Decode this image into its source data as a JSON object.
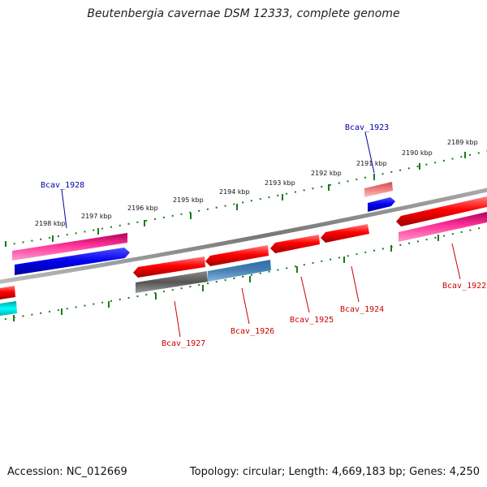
{
  "title": "Beutenbergia cavernae DSM 12333, complete genome",
  "footer": {
    "accession": "Accession: NC_012669",
    "stats": "Topology: circular; Length: 4,669,183 bp; Genes: 4,250"
  },
  "colors": {
    "forward_label": "#0000aa",
    "reverse_label": "#cc0000",
    "scale_ticks": "#1a7a1a",
    "genome_line": "#888888"
  },
  "scale_labels": [
    "2198 kbp",
    "2197 kbp",
    "2196 kbp",
    "2195 kbp",
    "2194 kbp",
    "2193 kbp",
    "2192 kbp",
    "2191 kbp",
    "2190 kbp",
    "2189 kbp"
  ],
  "gene_labels": [
    {
      "id": "Bcav_1928",
      "strand": "forward"
    },
    {
      "id": "Bcav_1923",
      "strand": "forward"
    },
    {
      "id": "Bcav_1927",
      "strand": "reverse"
    },
    {
      "id": "Bcav_1926",
      "strand": "reverse"
    },
    {
      "id": "Bcav_1925",
      "strand": "reverse"
    },
    {
      "id": "Bcav_1924",
      "strand": "reverse"
    },
    {
      "id": "Bcav_1922",
      "strand": "reverse"
    }
  ]
}
